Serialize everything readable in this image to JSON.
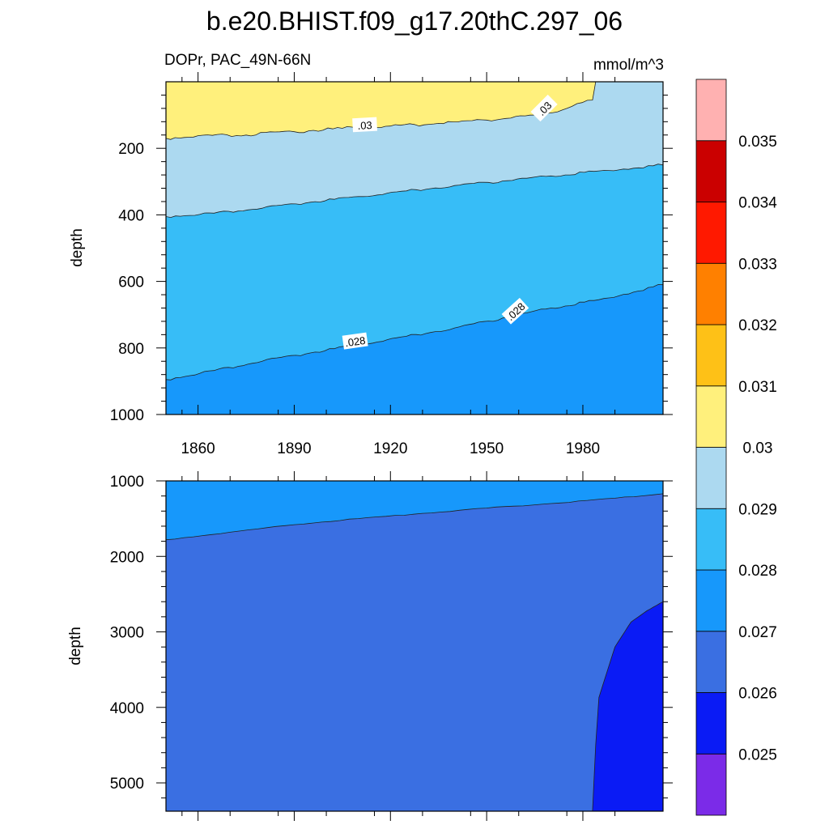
{
  "figure": {
    "title": "b.e20.BHIST.f09_g17.20thC.297_06",
    "variable_label": "DOPr, PAC_49N-66N",
    "units_label": "mmol/m^3",
    "ylabel_top": "depth",
    "ylabel_bottom": "depth"
  },
  "colorbar": {
    "colors": [
      "#7b2be8",
      "#0a1bf5",
      "#3a6fe2",
      "#1798fb",
      "#37bdf7",
      "#acd9f0",
      "#fff07c",
      "#fec117",
      "#ff8000",
      "#ff1900",
      "#cb0000",
      "#ffb1b1"
    ],
    "labels": [
      "0.025",
      "0.026",
      "0.027",
      "0.028",
      "0.029",
      "0.03",
      "0.031",
      "0.032",
      "0.033",
      "0.034",
      "0.035"
    ]
  },
  "chart_data": [
    {
      "type": "contour",
      "panel": "top",
      "xlim": [
        1850,
        2005
      ],
      "ylim": [
        0,
        1000
      ],
      "y_inverted": true,
      "x_ticks": [
        "1860",
        "1890",
        "1920",
        "1950",
        "1980"
      ],
      "y_ticks": [
        "200",
        "400",
        "600",
        "800",
        "1000"
      ],
      "xlabel": "",
      "ylabel": "depth",
      "contour_lines": [
        {
          "level": "0.03",
          "years": [
            1850,
            1860,
            1875,
            1890,
            1905,
            1920,
            1935,
            1950,
            1965,
            1975,
            1983,
            1984
          ],
          "depths": [
            170,
            162,
            160,
            150,
            140,
            133,
            125,
            115,
            100,
            80,
            55,
            0
          ]
        },
        {
          "level": "0.029",
          "years": [
            1850,
            1865,
            1880,
            1895,
            1910,
            1925,
            1940,
            1955,
            1970,
            1985,
            2005
          ],
          "depths": [
            405,
            395,
            380,
            362,
            345,
            328,
            312,
            298,
            283,
            268,
            250
          ]
        },
        {
          "level": "0.028",
          "years": [
            1850,
            1865,
            1880,
            1895,
            1910,
            1925,
            1940,
            1955,
            1970,
            1985,
            2005
          ],
          "depths": [
            895,
            868,
            840,
            815,
            790,
            765,
            740,
            710,
            680,
            655,
            610
          ]
        }
      ],
      "fill_bands": [
        {
          "range": "0.03-0.031",
          "color": "#fff07c"
        },
        {
          "range": "0.029-0.03",
          "color": "#acd9f0"
        },
        {
          "range": "0.028-0.029",
          "color": "#37bdf7"
        },
        {
          "range": "0.027-0.028",
          "color": "#1798fb"
        }
      ],
      "line_labels": [
        {
          "text": ".03",
          "year": 1912,
          "depth": 130
        },
        {
          "text": ".03",
          "year": 1968,
          "depth": 80
        },
        {
          "text": ".028",
          "year": 1909,
          "depth": 780
        },
        {
          "text": ".028",
          "year": 1959,
          "depth": 690
        }
      ]
    },
    {
      "type": "contour",
      "panel": "bottom",
      "xlim": [
        1850,
        2005
      ],
      "ylim": [
        1000,
        5375
      ],
      "y_inverted": true,
      "y_ticks": [
        "1000",
        "2000",
        "3000",
        "4000",
        "5000"
      ],
      "xlabel": "",
      "ylabel": "depth",
      "contour_lines": [
        {
          "level": "0.027",
          "years": [
            1850,
            1870,
            1890,
            1910,
            1930,
            1950,
            1970,
            1990,
            2005
          ],
          "depths": [
            1780,
            1680,
            1580,
            1500,
            1430,
            1360,
            1300,
            1230,
            1170
          ]
        },
        {
          "level": "0.026",
          "years": [
            1983,
            1984,
            1985,
            1987,
            1990,
            1995,
            2000,
            2005
          ],
          "depths": [
            5375,
            4500,
            3870,
            3600,
            3200,
            2870,
            2720,
            2600
          ]
        }
      ],
      "fill_bands": [
        {
          "range": "0.027-0.028",
          "color": "#1798fb"
        },
        {
          "range": "0.026-0.027",
          "color": "#3a6fe2"
        },
        {
          "range": "0.025-0.026",
          "color": "#0a1bf5"
        }
      ]
    }
  ]
}
